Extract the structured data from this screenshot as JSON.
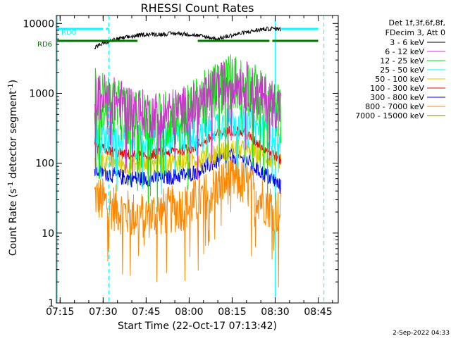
{
  "footer": {
    "stamp": "2-Sep-2022 04:33"
  },
  "chart_data": {
    "type": "line",
    "title": "RHESSI Count Rates",
    "xlabel": "Start Time (22-Oct-17 07:13:42)",
    "ylabel_prefix": "Count Rate (s",
    "ylabel_exp1": "-1",
    "ylabel_mid": " detector segment",
    "ylabel_exp2": "-1",
    "ylabel_suffix": ")",
    "y_scale": "log",
    "ylim": [
      1,
      13000
    ],
    "xlim": [
      "07:13:42",
      "08:52:00"
    ],
    "x_ticks": [
      "07:15",
      "07:30",
      "07:45",
      "08:00",
      "08:15",
      "08:30",
      "08:45"
    ],
    "y_ticks": [
      "1",
      "10",
      "100",
      "1000",
      "10000"
    ],
    "legend": {
      "header_line1": "Det 1f,3f,6f,8f,",
      "header_line2": "FDecim 3, Att 0",
      "placement": "right"
    },
    "series": [
      {
        "name": "3 - 6 keV",
        "color": "#000000",
        "x": [
          "07:27",
          "07:30",
          "07:35",
          "07:40",
          "07:45",
          "07:50",
          "07:55",
          "08:00",
          "08:05",
          "08:10",
          "08:15",
          "08:20",
          "08:25",
          "08:30",
          "08:32"
        ],
        "values": [
          4500,
          5200,
          6000,
          6500,
          7000,
          7000,
          7200,
          7000,
          6500,
          6000,
          6800,
          7500,
          8200,
          8500,
          8200
        ]
      },
      {
        "name": "6 - 12 keV",
        "color": "#cc33cc",
        "x": [
          "07:27",
          "07:30",
          "07:35",
          "07:40",
          "07:45",
          "07:50",
          "07:55",
          "08:00",
          "08:05",
          "08:10",
          "08:15",
          "08:20",
          "08:25",
          "08:30",
          "08:32"
        ],
        "values": [
          800,
          900,
          750,
          600,
          500,
          500,
          550,
          600,
          800,
          1200,
          1500,
          1300,
          900,
          700,
          600
        ]
      },
      {
        "name": "12 - 25 keV",
        "color": "#00ee00",
        "x": [
          "07:27",
          "07:30",
          "07:35",
          "07:40",
          "07:45",
          "07:50",
          "07:55",
          "08:00",
          "08:05",
          "08:10",
          "08:15",
          "08:20",
          "08:25",
          "08:30",
          "08:32"
        ],
        "values": [
          900,
          800,
          600,
          450,
          400,
          420,
          450,
          550,
          800,
          1200,
          1500,
          1300,
          850,
          600,
          500
        ]
      },
      {
        "name": "25 - 50 keV",
        "color": "#00ffff",
        "x": [
          "07:27",
          "07:30",
          "07:35",
          "07:40",
          "07:45",
          "07:50",
          "07:55",
          "08:00",
          "08:05",
          "08:10",
          "08:15",
          "08:20",
          "08:25",
          "08:30",
          "08:32"
        ],
        "values": [
          260,
          250,
          220,
          200,
          200,
          210,
          230,
          260,
          300,
          360,
          400,
          370,
          300,
          240,
          200
        ]
      },
      {
        "name": "50 - 100 keV",
        "color": "#ddcc00",
        "x": [
          "07:27",
          "07:30",
          "07:35",
          "07:40",
          "07:45",
          "07:50",
          "07:55",
          "08:00",
          "08:05",
          "08:10",
          "08:15",
          "08:20",
          "08:25",
          "08:30",
          "08:32"
        ],
        "values": [
          120,
          110,
          100,
          95,
          95,
          100,
          105,
          110,
          125,
          140,
          160,
          150,
          130,
          110,
          95
        ]
      },
      {
        "name": "100 - 300 keV",
        "color": "#ff0000",
        "x": [
          "07:27",
          "07:30",
          "07:35",
          "07:40",
          "07:45",
          "07:50",
          "07:55",
          "08:00",
          "08:05",
          "08:10",
          "08:15",
          "08:20",
          "08:25",
          "08:30",
          "08:32"
        ],
        "values": [
          170,
          160,
          140,
          130,
          130,
          140,
          150,
          160,
          200,
          260,
          300,
          260,
          180,
          130,
          110
        ]
      },
      {
        "name": "300 - 800 keV",
        "color": "#0000ff",
        "x": [
          "07:27",
          "07:30",
          "07:35",
          "07:40",
          "07:45",
          "07:50",
          "07:55",
          "08:00",
          "08:05",
          "08:10",
          "08:15",
          "08:20",
          "08:25",
          "08:30",
          "08:32"
        ],
        "values": [
          80,
          75,
          65,
          60,
          60,
          62,
          65,
          70,
          85,
          110,
          130,
          110,
          75,
          55,
          45
        ]
      },
      {
        "name": "800 - 7000 keV",
        "color": "#ff8800",
        "x": [
          "07:27",
          "07:30",
          "07:35",
          "07:40",
          "07:45",
          "07:50",
          "07:55",
          "08:00",
          "08:05",
          "08:10",
          "08:15",
          "08:20",
          "08:25",
          "08:30",
          "08:32"
        ],
        "values": [
          35,
          28,
          22,
          18,
          18,
          20,
          22,
          25,
          32,
          48,
          60,
          50,
          32,
          22,
          18
        ]
      },
      {
        "name": "7000 - 15000 keV",
        "color": "#888800",
        "x": [],
        "values": []
      }
    ],
    "attenuator_bars": [
      {
        "label": "RD0",
        "color": "#00ffff",
        "segments": [
          [
            "07:14",
            "07:30"
          ],
          [
            "07:31",
            "07:32"
          ],
          [
            "08:32",
            "08:45"
          ]
        ]
      },
      {
        "label": "RD6",
        "color": "#007700",
        "segments": [
          [
            "07:14",
            "07:38"
          ],
          [
            "07:38",
            "07:42"
          ],
          [
            "08:03",
            "08:28"
          ],
          [
            "08:29",
            "08:45"
          ]
        ]
      }
    ],
    "vertical_lines": [
      {
        "x": "07:14",
        "style": "solid",
        "color": "#00ffff"
      },
      {
        "x": "07:32",
        "style": "dashed",
        "color": "#00ffff"
      },
      {
        "x": "08:30",
        "style": "solid",
        "color": "#00ffff"
      },
      {
        "x": "08:47",
        "style": "dashed",
        "color": "#00ffff"
      }
    ],
    "grid": false
  }
}
